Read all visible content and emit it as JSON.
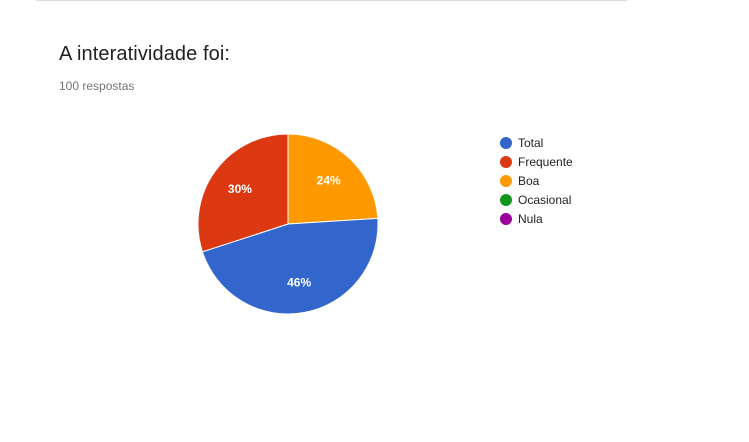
{
  "question": {
    "title": "A interatividade foi:",
    "response_count": "100 respostas"
  },
  "chart_data": {
    "type": "pie",
    "categories": [
      "Total",
      "Frequente",
      "Boa",
      "Ocasional",
      "Nula"
    ],
    "values": [
      46,
      30,
      24,
      0,
      0
    ],
    "value_labels": [
      "46%",
      "30%",
      "24%",
      "",
      ""
    ],
    "colors": [
      "#3366cc",
      "#dc3912",
      "#ff9900",
      "#109618",
      "#990099"
    ],
    "legend_position": "right"
  }
}
